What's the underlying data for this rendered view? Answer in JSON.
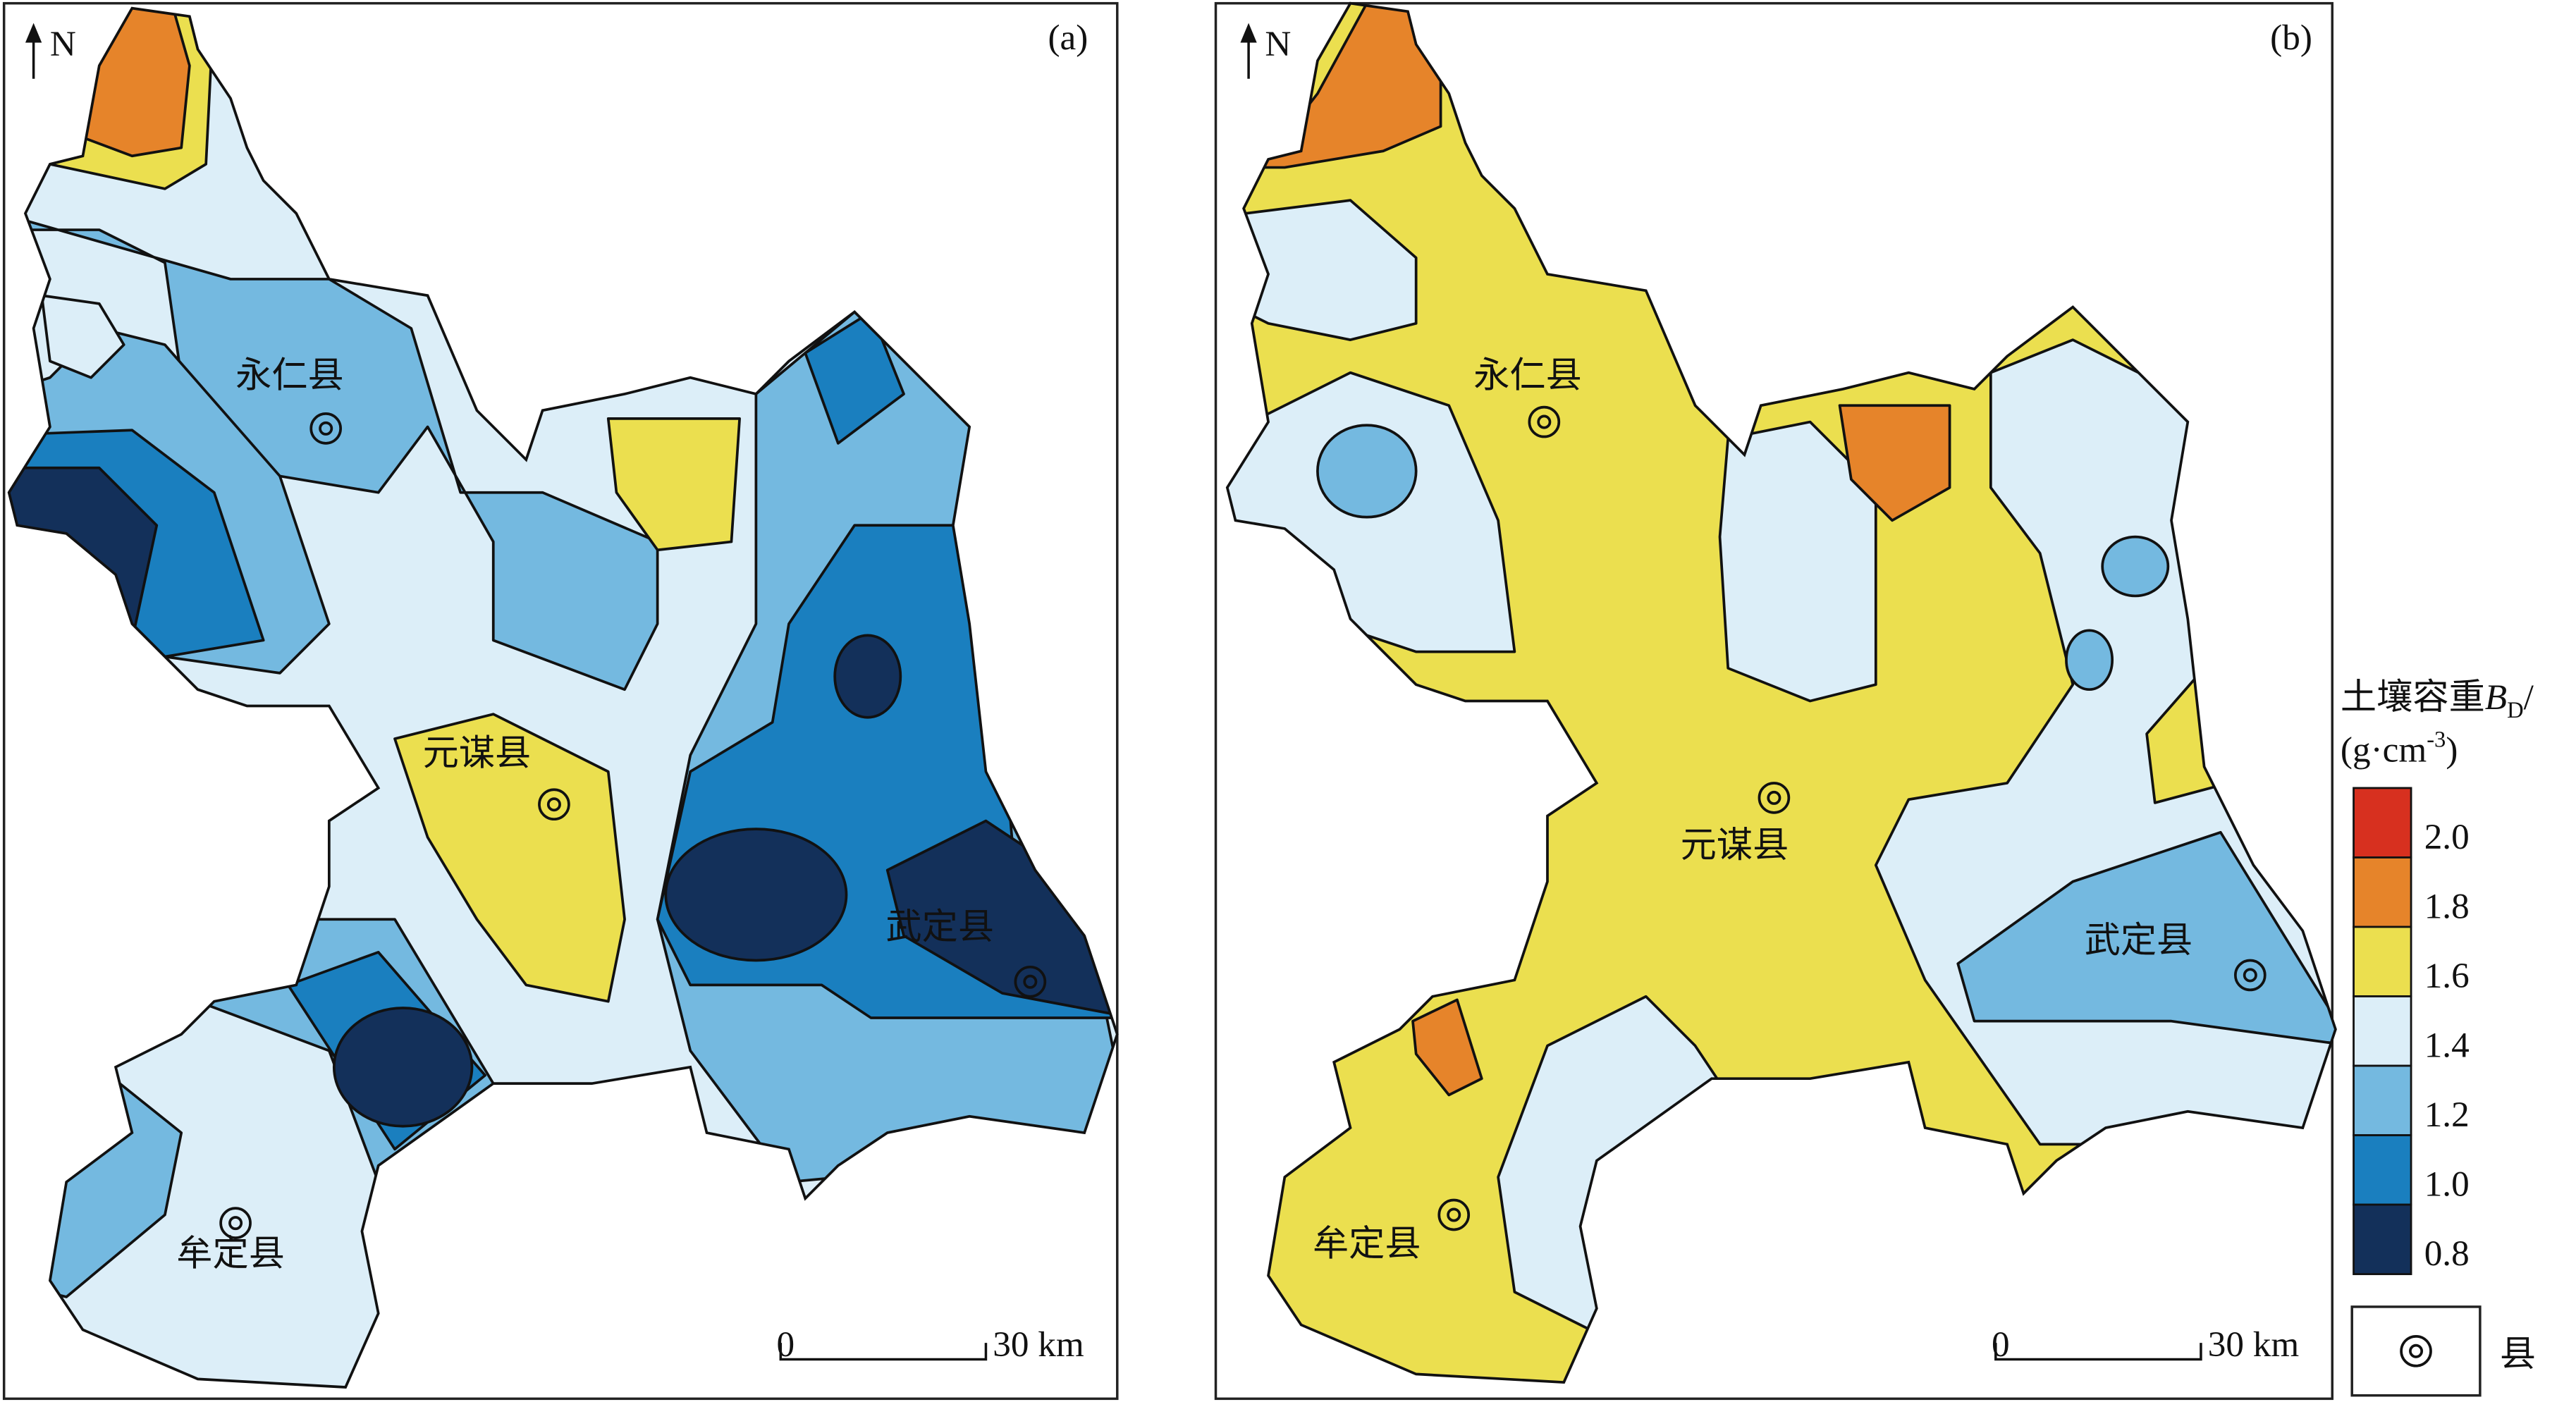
{
  "panels": [
    {
      "label": "(a)",
      "north": "N",
      "scale": {
        "start": "0",
        "end": "30 km"
      },
      "counties": [
        "永仁县",
        "元谋县",
        "武定县",
        "牟定县"
      ]
    },
    {
      "label": "(b)",
      "north": "N",
      "scale": {
        "start": "0",
        "end": "30 km"
      },
      "counties": [
        "永仁县",
        "元谋县",
        "武定县",
        "牟定县"
      ]
    }
  ],
  "legend": {
    "title": "土壤容重",
    "symbol": "B",
    "subscript": "D",
    "slash": "/",
    "unit": "(g·cm",
    "exponent": "-3",
    "close": ")",
    "classes": [
      "2.0",
      "1.8",
      "1.6",
      "1.4",
      "1.2",
      "1.0",
      "0.8"
    ],
    "county_symbol": "县"
  }
}
